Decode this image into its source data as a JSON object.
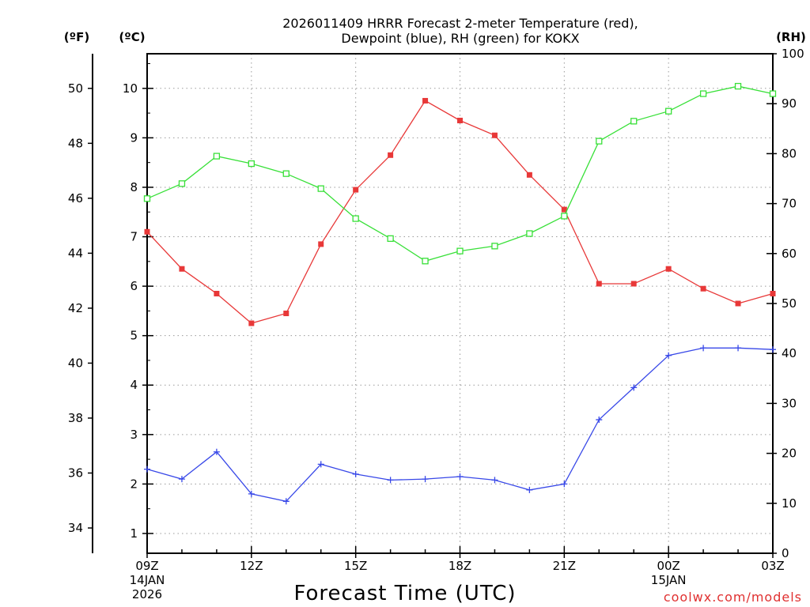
{
  "chart_data": {
    "type": "line",
    "title": [
      "2026011409 HRRR Forecast 2-meter Temperature (red),",
      "Dewpoint (blue), RH (green) for KOKX"
    ],
    "xlabel": "Forecast Time (UTC)",
    "credit": "coolwx.com/models",
    "units": {
      "fahrenheit": "(ºF)",
      "celsius": "(ºC)",
      "rh": "(RH)"
    },
    "x_hours": [
      9,
      10,
      11,
      12,
      13,
      14,
      15,
      16,
      17,
      18,
      19,
      20,
      21,
      22,
      23,
      24,
      25,
      26,
      27
    ],
    "xlim": [
      9,
      27
    ],
    "x_ticks": [
      {
        "hour": 9,
        "lines": [
          "09Z",
          "14JAN",
          "2026"
        ]
      },
      {
        "hour": 12,
        "lines": [
          "12Z"
        ]
      },
      {
        "hour": 15,
        "lines": [
          "15Z"
        ]
      },
      {
        "hour": 18,
        "lines": [
          "18Z"
        ]
      },
      {
        "hour": 21,
        "lines": [
          "21Z"
        ]
      },
      {
        "hour": 24,
        "lines": [
          "00Z",
          "15JAN"
        ]
      },
      {
        "hour": 27,
        "lines": [
          "03Z"
        ]
      }
    ],
    "celsius_axis": {
      "range": [
        0.6,
        10.7
      ],
      "ticks": [
        1,
        2,
        3,
        4,
        5,
        6,
        7,
        8,
        9,
        10
      ]
    },
    "fahrenheit_axis": {
      "ticks": [
        34,
        36,
        38,
        40,
        42,
        44,
        46,
        48,
        50
      ]
    },
    "rh_axis": {
      "range": [
        0,
        100
      ],
      "ticks": [
        0,
        10,
        20,
        30,
        40,
        50,
        60,
        70,
        80,
        90,
        100
      ]
    },
    "series": [
      {
        "name": "Temperature",
        "color": "#e83838",
        "axis": "celsius",
        "marker": "filled-square",
        "values": [
          7.1,
          6.35,
          5.85,
          5.25,
          5.45,
          6.85,
          7.95,
          8.65,
          9.75,
          9.35,
          9.05,
          8.25,
          7.55,
          6.05,
          6.05,
          6.35,
          5.95,
          5.65,
          5.85
        ]
      },
      {
        "name": "Dewpoint",
        "color": "#3848e8",
        "axis": "celsius",
        "marker": "plus",
        "values": [
          2.3,
          2.1,
          2.65,
          1.8,
          1.65,
          2.4,
          2.2,
          2.08,
          2.1,
          2.15,
          2.08,
          1.88,
          2.0,
          3.3,
          3.95,
          4.6,
          4.75,
          4.75,
          4.72
        ]
      },
      {
        "name": "RH",
        "color": "#38e038",
        "axis": "rh",
        "marker": "open-square",
        "values": [
          71,
          74,
          79.5,
          78,
          76,
          73,
          67,
          63,
          58.5,
          60.5,
          61.5,
          64,
          67.5,
          82.5,
          86.5,
          88.5,
          92,
          93.5,
          92
        ]
      }
    ]
  }
}
